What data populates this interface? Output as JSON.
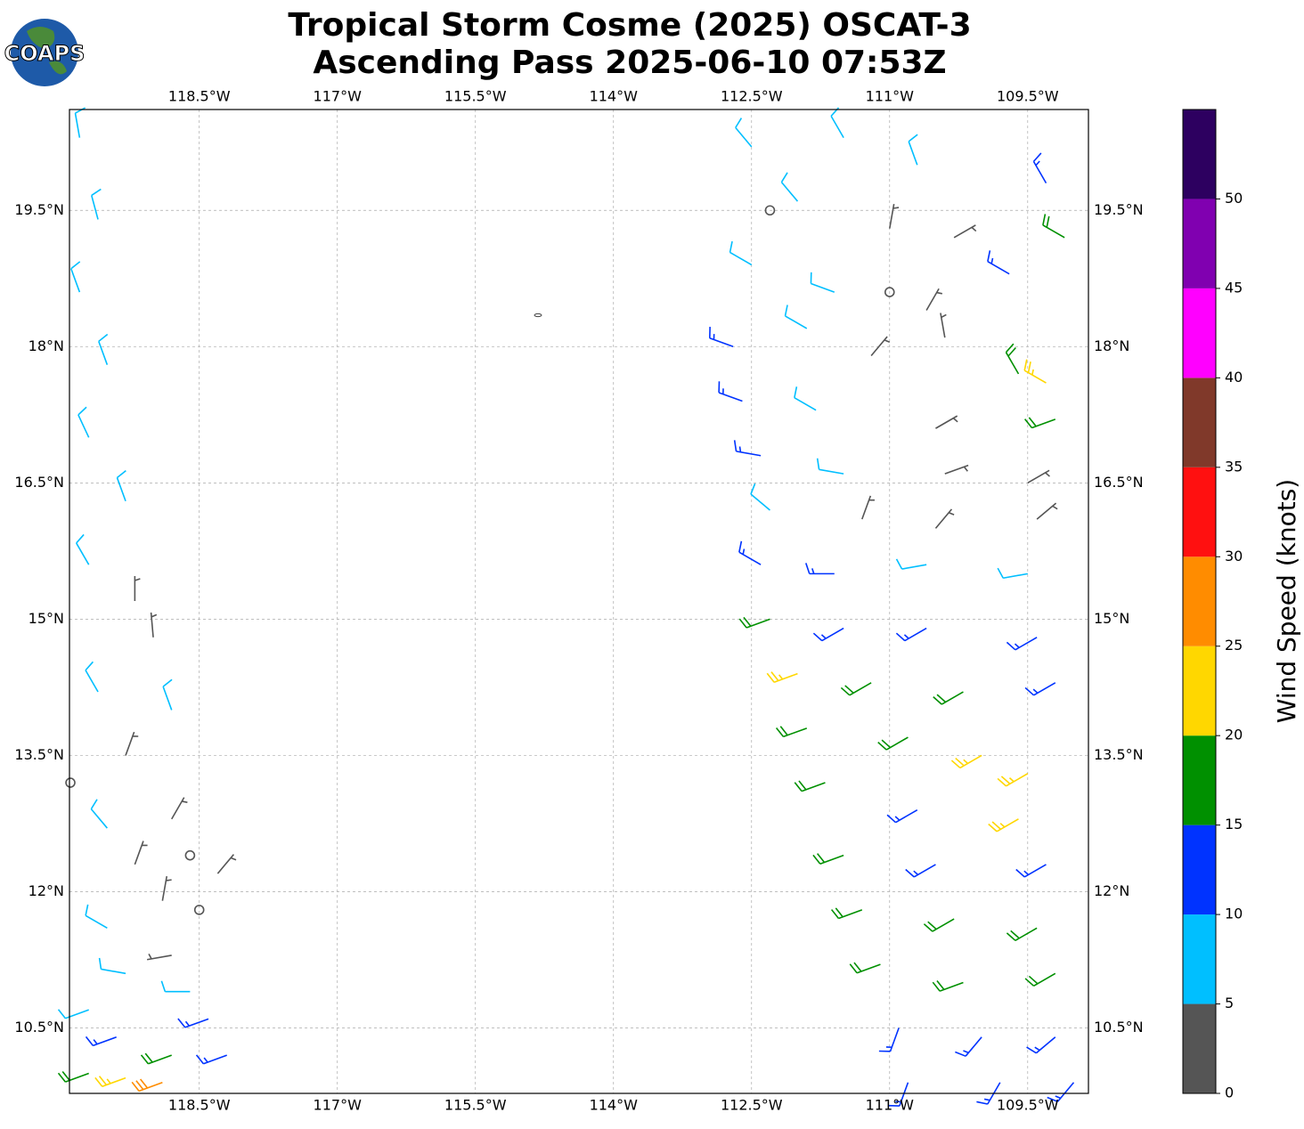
{
  "header": {
    "title_lines": [
      "Tropical Storm Cosme (2025) OSCAT-3",
      "Ascending Pass 2025-06-10 07:53Z"
    ],
    "logo": "COAPS"
  },
  "map": {
    "type": "wind-barbs",
    "xlim": [
      -119.91,
      -108.84
    ],
    "ylim": [
      9.78,
      20.61
    ],
    "xticks": [
      {
        "value": -118.5,
        "label": "118.5°W"
      },
      {
        "value": -117,
        "label": "117°W"
      },
      {
        "value": -115.5,
        "label": "115.5°W"
      },
      {
        "value": -114,
        "label": "114°W"
      },
      {
        "value": -112.5,
        "label": "112.5°W"
      },
      {
        "value": -111,
        "label": "111°W"
      },
      {
        "value": -109.5,
        "label": "109.5°W"
      }
    ],
    "yticks": [
      {
        "value": 10.5,
        "label": "10.5°N"
      },
      {
        "value": 12,
        "label": "12°N"
      },
      {
        "value": 13.5,
        "label": "13.5°N"
      },
      {
        "value": 15,
        "label": "15°N"
      },
      {
        "value": 16.5,
        "label": "16.5°N"
      },
      {
        "value": 18,
        "label": "18°N"
      },
      {
        "value": 19.5,
        "label": "19.5°N"
      }
    ],
    "grid": true,
    "barbs": [
      [
        -119.8,
        20.3,
        8,
        350
      ],
      [
        -119.6,
        19.4,
        8,
        345
      ],
      [
        -119.8,
        18.6,
        8,
        340
      ],
      [
        -119.5,
        17.8,
        8,
        340
      ],
      [
        -119.7,
        17.0,
        8,
        335
      ],
      [
        -119.3,
        16.3,
        8,
        340
      ],
      [
        -119.7,
        15.6,
        8,
        330
      ],
      [
        -119.2,
        15.2,
        3,
        0
      ],
      [
        -119.0,
        14.8,
        3,
        355
      ],
      [
        -119.6,
        14.2,
        8,
        330
      ],
      [
        -118.8,
        14.0,
        8,
        340
      ],
      [
        -119.3,
        13.5,
        3,
        20
      ],
      [
        -119.9,
        13.2,
        0,
        0
      ],
      [
        -119.5,
        12.7,
        8,
        320
      ],
      [
        -118.8,
        12.8,
        3,
        30
      ],
      [
        -118.6,
        12.4,
        0,
        0
      ],
      [
        -119.2,
        12.3,
        3,
        20
      ],
      [
        -118.3,
        12.2,
        3,
        40
      ],
      [
        -118.9,
        11.9,
        3,
        10
      ],
      [
        -118.5,
        11.8,
        0,
        0
      ],
      [
        -119.5,
        11.6,
        8,
        300
      ],
      [
        -118.8,
        11.3,
        3,
        260
      ],
      [
        -119.3,
        11.1,
        8,
        280
      ],
      [
        -118.6,
        10.9,
        8,
        270
      ],
      [
        -119.7,
        10.7,
        8,
        250
      ],
      [
        -118.4,
        10.6,
        13,
        250
      ],
      [
        -119.4,
        10.4,
        13,
        250
      ],
      [
        -118.8,
        10.2,
        18,
        250
      ],
      [
        -119.3,
        9.95,
        23,
        250
      ],
      [
        -118.9,
        9.9,
        28,
        250
      ],
      [
        -119.7,
        10.0,
        18,
        250
      ],
      [
        -118.2,
        10.2,
        13,
        250
      ],
      [
        -112.5,
        20.2,
        8,
        320
      ],
      [
        -111.5,
        20.3,
        8,
        330
      ],
      [
        -110.7,
        20.0,
        8,
        340
      ],
      [
        -112.0,
        19.6,
        8,
        320
      ],
      [
        -112.3,
        19.5,
        0,
        0
      ],
      [
        -111.0,
        19.3,
        3,
        10
      ],
      [
        -110.3,
        19.2,
        3,
        60
      ],
      [
        -109.3,
        19.8,
        13,
        330
      ],
      [
        -109.1,
        19.2,
        18,
        300
      ],
      [
        -112.5,
        18.9,
        8,
        300
      ],
      [
        -111.6,
        18.6,
        8,
        290
      ],
      [
        -111.0,
        18.6,
        0,
        0
      ],
      [
        -110.6,
        18.4,
        3,
        30
      ],
      [
        -109.7,
        18.8,
        13,
        300
      ],
      [
        -112.7,
        18.0,
        13,
        290
      ],
      [
        -111.9,
        18.2,
        8,
        300
      ],
      [
        -111.2,
        17.9,
        3,
        40
      ],
      [
        -110.4,
        18.1,
        3,
        350
      ],
      [
        -109.6,
        17.7,
        18,
        330
      ],
      [
        -109.3,
        17.6,
        23,
        300
      ],
      [
        -112.6,
        17.4,
        13,
        290
      ],
      [
        -111.8,
        17.3,
        8,
        300
      ],
      [
        -110.5,
        17.1,
        3,
        60
      ],
      [
        -109.2,
        17.2,
        18,
        250
      ],
      [
        -112.4,
        16.8,
        13,
        280
      ],
      [
        -111.5,
        16.6,
        8,
        280
      ],
      [
        -110.4,
        16.6,
        3,
        70
      ],
      [
        -109.5,
        16.5,
        3,
        60
      ],
      [
        -112.3,
        16.2,
        8,
        310
      ],
      [
        -111.3,
        16.1,
        3,
        20
      ],
      [
        -110.5,
        16.0,
        3,
        40
      ],
      [
        -109.4,
        16.1,
        3,
        50
      ],
      [
        -112.4,
        15.6,
        13,
        300
      ],
      [
        -111.6,
        15.5,
        13,
        270
      ],
      [
        -110.6,
        15.6,
        8,
        260
      ],
      [
        -109.5,
        15.5,
        8,
        260
      ],
      [
        -112.3,
        15.0,
        18,
        250
      ],
      [
        -111.5,
        14.9,
        13,
        240
      ],
      [
        -110.6,
        14.9,
        13,
        240
      ],
      [
        -109.4,
        14.8,
        13,
        240
      ],
      [
        -112.0,
        14.4,
        23,
        250
      ],
      [
        -111.2,
        14.3,
        18,
        240
      ],
      [
        -110.2,
        14.2,
        18,
        240
      ],
      [
        -109.2,
        14.3,
        13,
        240
      ],
      [
        -111.9,
        13.8,
        18,
        250
      ],
      [
        -110.8,
        13.7,
        18,
        240
      ],
      [
        -110.0,
        13.5,
        23,
        240
      ],
      [
        -109.5,
        13.3,
        23,
        240
      ],
      [
        -111.7,
        13.2,
        18,
        250
      ],
      [
        -110.7,
        12.9,
        13,
        240
      ],
      [
        -109.6,
        12.8,
        23,
        240
      ],
      [
        -111.5,
        12.4,
        18,
        250
      ],
      [
        -110.5,
        12.3,
        13,
        240
      ],
      [
        -109.3,
        12.3,
        13,
        240
      ],
      [
        -111.3,
        11.8,
        18,
        250
      ],
      [
        -110.3,
        11.7,
        18,
        240
      ],
      [
        -109.4,
        11.6,
        18,
        240
      ],
      [
        -111.1,
        11.2,
        18,
        250
      ],
      [
        -110.2,
        11.0,
        18,
        250
      ],
      [
        -109.2,
        11.1,
        18,
        240
      ],
      [
        -110.9,
        10.5,
        13,
        200
      ],
      [
        -110.0,
        10.4,
        13,
        220
      ],
      [
        -109.2,
        10.4,
        13,
        230
      ],
      [
        -110.8,
        9.9,
        13,
        200
      ],
      [
        -109.8,
        9.9,
        13,
        210
      ],
      [
        -109.0,
        9.9,
        13,
        220
      ]
    ]
  },
  "colorbar": {
    "label": "Wind Speed (knots)",
    "range": [
      0,
      55
    ],
    "ticks": [
      0,
      5,
      10,
      15,
      20,
      25,
      30,
      35,
      40,
      45,
      50
    ],
    "colors": [
      "#555555",
      "#00bfff",
      "#0033ff",
      "#009000",
      "#ffd700",
      "#ff8c00",
      "#ff1010",
      "#80392a",
      "#ff00ff",
      "#8000b0",
      "#2d0060"
    ]
  }
}
